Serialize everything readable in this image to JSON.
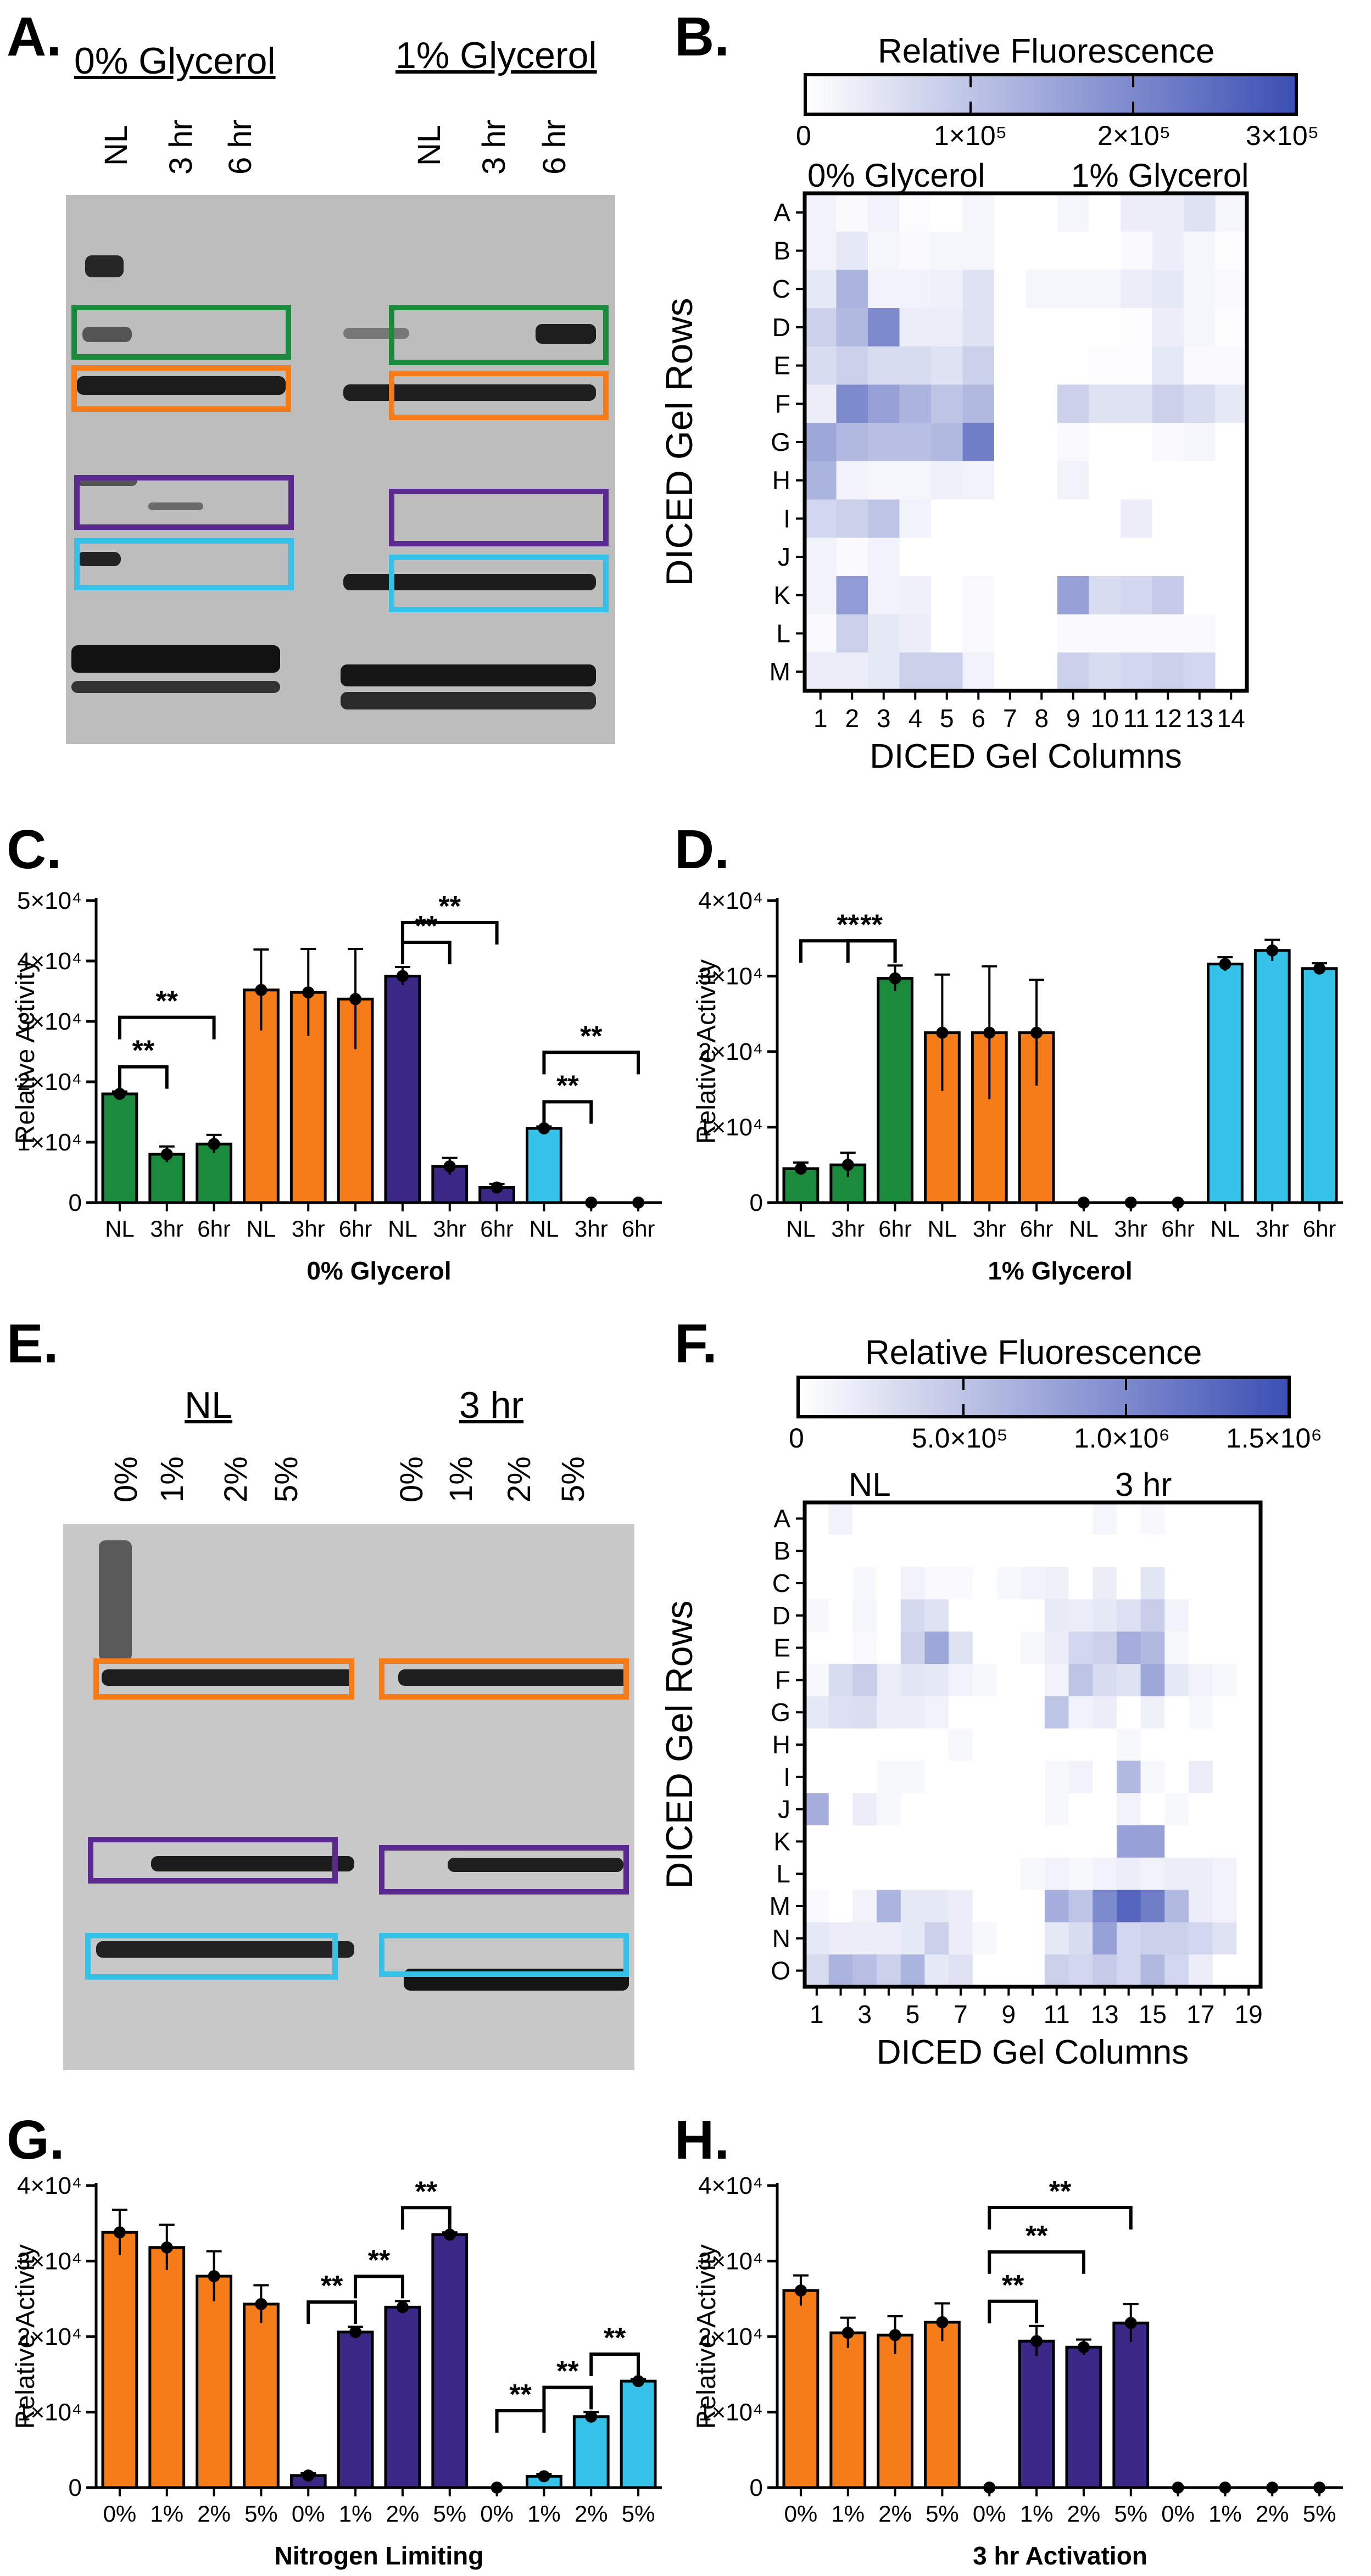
{
  "colors": {
    "green": "#1a8a3c",
    "orange": "#f57c18",
    "purple": "#3b2785",
    "blue": "#35c1e8",
    "heat_low": "#ffffff",
    "heat_high": "#3c4fb4"
  },
  "panels": {
    "A": {
      "letter": "A.",
      "left_title": "0% Glycerol",
      "right_title": "1% Glycerol",
      "left_lanes": [
        "NL",
        "3 hr",
        "6 hr"
      ],
      "right_lanes": [
        "NL",
        "3 hr",
        "6 hr"
      ]
    },
    "B": {
      "letter": "B.",
      "colorbar_title": "Relative Fluorescence",
      "colorbar_ticks": [
        "0",
        "1×10⁵",
        "2×10⁵",
        "3×10⁵"
      ],
      "group_left": "0% Glycerol",
      "group_right": "1% Glycerol",
      "ylabel": "DICED Gel Rows",
      "xlabel": "DICED Gel Columns"
    },
    "C": {
      "letter": "C."
    },
    "D": {
      "letter": "D."
    },
    "E": {
      "letter": "E.",
      "left_title": "NL",
      "right_title": "3 hr",
      "left_lanes": [
        "0%",
        "1%",
        "2%",
        "5%"
      ],
      "right_lanes": [
        "0%",
        "1%",
        "2%",
        "5%"
      ]
    },
    "F": {
      "letter": "F.",
      "colorbar_title": "Relative Fluorescence",
      "colorbar_ticks": [
        "0",
        "5.0×10⁵",
        "1.0×10⁶",
        "1.5×10⁶"
      ],
      "group_left": "NL",
      "group_right": "3 hr",
      "ylabel": "DICED Gel Rows",
      "xlabel": "DICED Gel Columns"
    },
    "G": {
      "letter": "G."
    },
    "H": {
      "letter": "H."
    }
  },
  "chart_data": [
    {
      "id": "B",
      "type": "heatmap",
      "title": "Relative Fluorescence",
      "xlabel": "DICED Gel Columns",
      "ylabel": "DICED Gel Rows",
      "rows": [
        "A",
        "B",
        "C",
        "D",
        "E",
        "F",
        "G",
        "H",
        "I",
        "J",
        "K",
        "L",
        "M"
      ],
      "columns": [
        "1",
        "2",
        "3",
        "4",
        "5",
        "6",
        "7",
        "8",
        "9",
        "10",
        "11",
        "12",
        "13",
        "14"
      ],
      "column_tick_labels": [
        "1",
        "2",
        "3",
        "4",
        "5",
        "6",
        "7",
        "8",
        "9",
        "10",
        "11",
        "12",
        "13",
        "14"
      ],
      "vmin": 0,
      "vmax": 300000,
      "values": [
        [
          20000,
          8000,
          20000,
          5000,
          0,
          15000,
          0,
          0,
          15000,
          0,
          30000,
          30000,
          50000,
          15000
        ],
        [
          20000,
          40000,
          15000,
          10000,
          15000,
          15000,
          0,
          0,
          0,
          0,
          10000,
          30000,
          15000,
          5000
        ],
        [
          40000,
          130000,
          20000,
          20000,
          25000,
          50000,
          0,
          15000,
          15000,
          15000,
          30000,
          40000,
          15000,
          10000
        ],
        [
          80000,
          120000,
          200000,
          30000,
          30000,
          50000,
          0,
          0,
          0,
          0,
          5000,
          30000,
          15000,
          5000
        ],
        [
          60000,
          80000,
          60000,
          60000,
          50000,
          80000,
          0,
          0,
          0,
          5000,
          5000,
          40000,
          10000,
          10000
        ],
        [
          30000,
          200000,
          160000,
          130000,
          100000,
          120000,
          0,
          0,
          80000,
          50000,
          50000,
          80000,
          60000,
          40000
        ],
        [
          150000,
          120000,
          110000,
          110000,
          120000,
          220000,
          0,
          0,
          10000,
          0,
          0,
          10000,
          15000,
          0
        ],
        [
          130000,
          20000,
          15000,
          15000,
          25000,
          20000,
          0,
          0,
          20000,
          0,
          0,
          0,
          0,
          0
        ],
        [
          70000,
          80000,
          100000,
          20000,
          0,
          0,
          0,
          0,
          0,
          0,
          30000,
          0,
          0,
          0
        ],
        [
          20000,
          10000,
          20000,
          0,
          0,
          0,
          0,
          0,
          0,
          0,
          0,
          0,
          0,
          0
        ],
        [
          20000,
          170000,
          20000,
          25000,
          0,
          10000,
          0,
          0,
          160000,
          60000,
          70000,
          90000,
          0,
          0
        ],
        [
          10000,
          80000,
          40000,
          30000,
          0,
          10000,
          0,
          0,
          10000,
          10000,
          10000,
          10000,
          10000,
          0
        ],
        [
          30000,
          30000,
          40000,
          80000,
          80000,
          20000,
          0,
          0,
          80000,
          60000,
          70000,
          80000,
          70000,
          0
        ]
      ]
    },
    {
      "id": "C",
      "type": "bar",
      "xlabel": "0% Glycerol",
      "ylabel": "Relative Activity",
      "ylim": [
        0,
        50000
      ],
      "ytick_labels": [
        "0",
        "1×10⁴",
        "2×10⁴",
        "3×10⁴",
        "4×10⁴",
        "5×10⁴"
      ],
      "categories": [
        "NL",
        "3hr",
        "6hr",
        "NL",
        "3hr",
        "6hr",
        "NL",
        "3hr",
        "6hr",
        "NL",
        "3hr",
        "6hr"
      ],
      "values": [
        18000,
        8000,
        9700,
        35200,
        34800,
        33700,
        37500,
        6000,
        2500,
        12300,
        0,
        0
      ],
      "errors": [
        400,
        1300,
        1500,
        6700,
        7200,
        8300,
        1500,
        1400,
        600,
        300,
        0,
        0
      ],
      "bar_colors": [
        "green",
        "green",
        "green",
        "orange",
        "orange",
        "orange",
        "purple",
        "purple",
        "purple",
        "blue",
        "blue",
        "blue"
      ],
      "significance": [
        {
          "from": 0,
          "to": 1,
          "label": "**"
        },
        {
          "from": 0,
          "to": 2,
          "label": "**"
        },
        {
          "from": 6,
          "to": 7,
          "label": "**"
        },
        {
          "from": 6,
          "to": 8,
          "label": "**"
        },
        {
          "from": 9,
          "to": 10,
          "label": "**"
        },
        {
          "from": 9,
          "to": 11,
          "label": "**"
        }
      ]
    },
    {
      "id": "D",
      "type": "bar",
      "xlabel": "1% Glycerol",
      "ylabel": "Relative Activity",
      "ylim": [
        0,
        40000
      ],
      "ytick_labels": [
        "0",
        "1×10⁴",
        "2×10⁴",
        "3×10⁴",
        "4×10⁴"
      ],
      "categories": [
        "NL",
        "3hr",
        "6hr",
        "NL",
        "3hr",
        "6hr",
        "NL",
        "3hr",
        "6hr",
        "NL",
        "3hr",
        "6hr"
      ],
      "values": [
        4500,
        5000,
        29700,
        22500,
        22500,
        22500,
        0,
        0,
        0,
        31600,
        33400,
        31000
      ],
      "errors": [
        800,
        1600,
        1700,
        7700,
        8800,
        7000,
        0,
        0,
        0,
        900,
        1400,
        700
      ],
      "bar_colors": [
        "green",
        "green",
        "green",
        "orange",
        "orange",
        "orange",
        "purple",
        "purple",
        "purple",
        "blue",
        "blue",
        "blue"
      ],
      "significance": [
        {
          "from": 1,
          "to": 2,
          "label": "**"
        },
        {
          "from": 0,
          "to": 2,
          "label": "**"
        }
      ]
    },
    {
      "id": "F",
      "type": "heatmap",
      "title": "Relative Fluorescence",
      "xlabel": "DICED Gel Columns",
      "ylabel": "DICED Gel Rows",
      "rows": [
        "A",
        "B",
        "C",
        "D",
        "E",
        "F",
        "G",
        "H",
        "I",
        "J",
        "K",
        "L",
        "M",
        "N",
        "O"
      ],
      "columns": [
        "1",
        "2",
        "3",
        "4",
        "5",
        "6",
        "7",
        "8",
        "9",
        "10",
        "11",
        "12",
        "13",
        "14",
        "15",
        "16",
        "17",
        "18",
        "19"
      ],
      "column_tick_labels": [
        "1",
        "",
        "3",
        "",
        "5",
        "",
        "7",
        "",
        "9",
        "",
        "11",
        "",
        "13",
        "",
        "15",
        "",
        "17",
        "",
        "19"
      ],
      "vmin": 0,
      "vmax": 1500000,
      "values": [
        [
          0,
          100000,
          0,
          0,
          0,
          0,
          0,
          0,
          0,
          0,
          0,
          0,
          80000,
          0,
          60000,
          0,
          0,
          0,
          0
        ],
        [
          0,
          0,
          0,
          0,
          0,
          0,
          0,
          0,
          0,
          0,
          0,
          0,
          0,
          0,
          0,
          0,
          0,
          0,
          0
        ],
        [
          0,
          0,
          60000,
          0,
          100000,
          50000,
          50000,
          0,
          60000,
          100000,
          120000,
          0,
          150000,
          0,
          220000,
          0,
          0,
          0,
          0
        ],
        [
          60000,
          0,
          80000,
          0,
          320000,
          250000,
          0,
          0,
          0,
          0,
          180000,
          160000,
          200000,
          260000,
          420000,
          100000,
          0,
          0,
          0
        ],
        [
          0,
          0,
          50000,
          0,
          400000,
          750000,
          250000,
          0,
          0,
          60000,
          150000,
          350000,
          400000,
          700000,
          600000,
          60000,
          0,
          0,
          0
        ],
        [
          60000,
          300000,
          420000,
          160000,
          220000,
          200000,
          100000,
          60000,
          0,
          0,
          100000,
          500000,
          300000,
          250000,
          750000,
          200000,
          100000,
          60000,
          0
        ],
        [
          200000,
          260000,
          280000,
          160000,
          150000,
          100000,
          0,
          0,
          0,
          0,
          500000,
          100000,
          150000,
          0,
          120000,
          0,
          60000,
          0,
          0
        ],
        [
          0,
          0,
          0,
          0,
          0,
          0,
          60000,
          0,
          0,
          0,
          0,
          0,
          0,
          60000,
          0,
          0,
          0,
          0,
          0
        ],
        [
          0,
          0,
          0,
          60000,
          60000,
          0,
          0,
          0,
          0,
          0,
          60000,
          100000,
          0,
          600000,
          60000,
          0,
          150000,
          0,
          0
        ],
        [
          700000,
          0,
          150000,
          60000,
          0,
          0,
          0,
          0,
          0,
          0,
          60000,
          0,
          0,
          100000,
          0,
          60000,
          0,
          0,
          0
        ],
        [
          0,
          0,
          0,
          0,
          0,
          0,
          0,
          0,
          0,
          0,
          0,
          0,
          0,
          800000,
          800000,
          0,
          0,
          0,
          0
        ],
        [
          0,
          0,
          0,
          0,
          0,
          0,
          0,
          0,
          0,
          60000,
          100000,
          60000,
          100000,
          150000,
          100000,
          150000,
          150000,
          100000,
          0
        ],
        [
          50000,
          0,
          100000,
          650000,
          200000,
          200000,
          150000,
          0,
          0,
          0,
          700000,
          500000,
          1000000,
          1300000,
          1100000,
          600000,
          150000,
          100000,
          0
        ],
        [
          200000,
          150000,
          150000,
          150000,
          200000,
          400000,
          150000,
          60000,
          0,
          0,
          200000,
          300000,
          800000,
          350000,
          400000,
          400000,
          350000,
          250000,
          0
        ],
        [
          300000,
          650000,
          550000,
          400000,
          650000,
          200000,
          250000,
          0,
          0,
          0,
          400000,
          350000,
          450000,
          350000,
          600000,
          350000,
          150000,
          0,
          0
        ]
      ]
    },
    {
      "id": "G",
      "type": "bar",
      "xlabel": "Nitrogen Limiting",
      "ylabel": "Relative Activity",
      "ylim": [
        0,
        40000
      ],
      "ytick_labels": [
        "0",
        "1×10⁴",
        "2×10⁴",
        "3×10⁴",
        "4×10⁴"
      ],
      "categories": [
        "0%",
        "1%",
        "2%",
        "5%",
        "0%",
        "1%",
        "2%",
        "5%",
        "0%",
        "1%",
        "2%",
        "5%"
      ],
      "values": [
        33800,
        31800,
        28000,
        24300,
        1600,
        20600,
        23900,
        33500,
        0,
        1500,
        9400,
        14100
      ],
      "errors": [
        3000,
        3000,
        3300,
        2500,
        300,
        700,
        800,
        300,
        0,
        300,
        600,
        300
      ],
      "bar_colors": [
        "orange",
        "orange",
        "orange",
        "orange",
        "purple",
        "purple",
        "purple",
        "purple",
        "blue",
        "blue",
        "blue",
        "blue"
      ],
      "significance": [
        {
          "from": 4,
          "to": 5,
          "label": "**"
        },
        {
          "from": 5,
          "to": 6,
          "label": "**"
        },
        {
          "from": 6,
          "to": 7,
          "label": "**"
        },
        {
          "from": 8,
          "to": 9,
          "label": "**"
        },
        {
          "from": 9,
          "to": 10,
          "label": "**"
        },
        {
          "from": 10,
          "to": 11,
          "label": "**"
        }
      ]
    },
    {
      "id": "H",
      "type": "bar",
      "xlabel": "3 hr Activation",
      "ylabel": "Relative Activity",
      "ylim": [
        0,
        40000
      ],
      "ytick_labels": [
        "0",
        "1×10⁴",
        "2×10⁴",
        "3×10⁴",
        "4×10⁴"
      ],
      "categories": [
        "0%",
        "1%",
        "2%",
        "5%",
        "0%",
        "1%",
        "2%",
        "5%",
        "0%",
        "1%",
        "2%",
        "5%"
      ],
      "values": [
        26100,
        20500,
        20200,
        21900,
        0,
        19400,
        18600,
        21800,
        0,
        0,
        0,
        0
      ],
      "errors": [
        2000,
        2000,
        2500,
        2500,
        0,
        2000,
        1000,
        2500,
        0,
        0,
        0,
        0
      ],
      "bar_colors": [
        "orange",
        "orange",
        "orange",
        "orange",
        "purple",
        "purple",
        "purple",
        "purple",
        "blue",
        "blue",
        "blue",
        "blue"
      ],
      "significance": [
        {
          "from": 4,
          "to": 5,
          "label": "**"
        },
        {
          "from": 4,
          "to": 6,
          "label": "**"
        },
        {
          "from": 4,
          "to": 7,
          "label": "**"
        }
      ]
    }
  ]
}
